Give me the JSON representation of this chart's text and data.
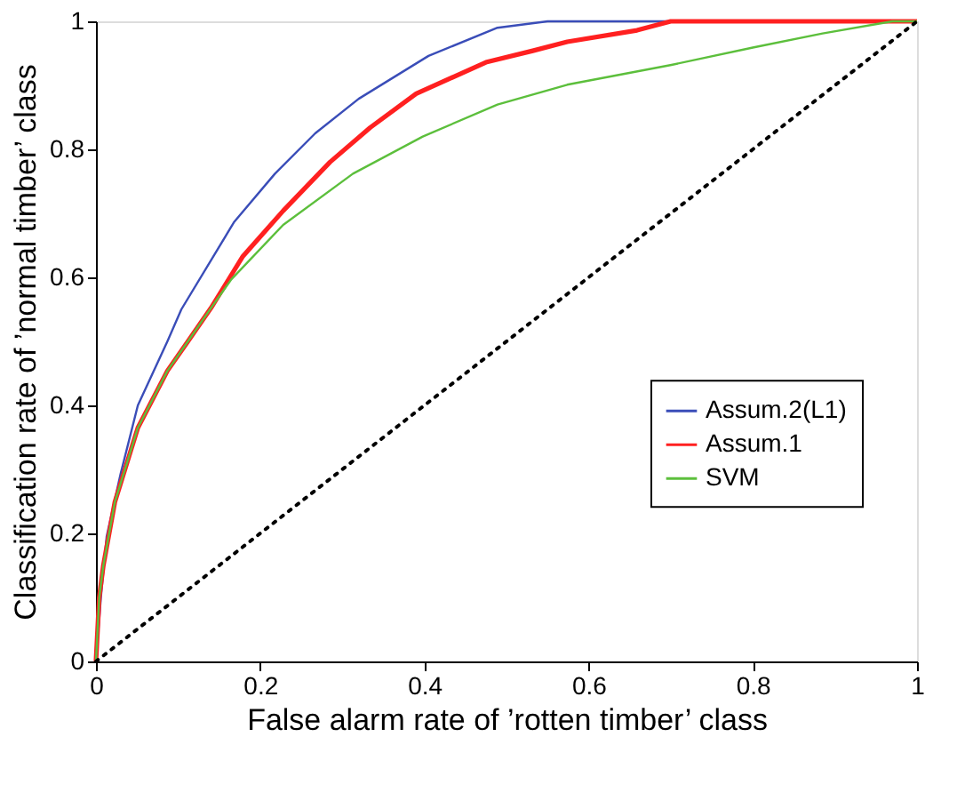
{
  "chart_data": {
    "type": "line",
    "xlabel": "False alarm rate of ’rotten timber’ class",
    "ylabel": "Classification rate of ’normal timber’ class",
    "xlim": [
      0,
      1
    ],
    "ylim": [
      0,
      1
    ],
    "xticks": [
      0,
      0.2,
      0.4,
      0.6,
      0.8,
      1
    ],
    "yticks": [
      0,
      0.2,
      0.4,
      0.6,
      0.8,
      1
    ],
    "grid": false,
    "legend": "right",
    "series": [
      {
        "name": "Assum.2(L1)",
        "color": "#3a4db8",
        "x": [
          0,
          0.006,
          0.013,
          0.03,
          0.051,
          0.087,
          0.104,
          0.168,
          0.218,
          0.267,
          0.32,
          0.405,
          0.489,
          0.55,
          1
        ],
        "values": [
          0,
          0.1,
          0.195,
          0.293,
          0.4,
          0.5,
          0.55,
          0.686,
          0.762,
          0.825,
          0.879,
          0.946,
          0.99,
          1,
          1
        ]
      },
      {
        "name": "Assum.1",
        "color": "#ff2020",
        "x": [
          0,
          0.004,
          0.009,
          0.023,
          0.051,
          0.087,
          0.112,
          0.14,
          0.179,
          0.228,
          0.285,
          0.334,
          0.39,
          0.475,
          0.532,
          0.574,
          0.659,
          0.7,
          1
        ],
        "values": [
          0,
          0.1,
          0.15,
          0.249,
          0.365,
          0.454,
          0.5,
          0.552,
          0.633,
          0.704,
          0.78,
          0.834,
          0.887,
          0.936,
          0.954,
          0.968,
          0.986,
          1,
          1
        ]
      },
      {
        "name": "SVM",
        "color": "#5cbf3c",
        "x": [
          0,
          0.004,
          0.009,
          0.023,
          0.051,
          0.087,
          0.112,
          0.14,
          0.165,
          0.228,
          0.313,
          0.398,
          0.489,
          0.574,
          0.701,
          0.8,
          0.885,
          0.97,
          1
        ],
        "values": [
          0,
          0.1,
          0.15,
          0.249,
          0.365,
          0.454,
          0.5,
          0.552,
          0.597,
          0.682,
          0.762,
          0.82,
          0.87,
          0.901,
          0.932,
          0.959,
          0.981,
          1,
          1
        ]
      },
      {
        "color": "#000000",
        "line_style": "dotted",
        "x": [
          0,
          1
        ],
        "values": [
          0,
          1
        ]
      }
    ]
  }
}
